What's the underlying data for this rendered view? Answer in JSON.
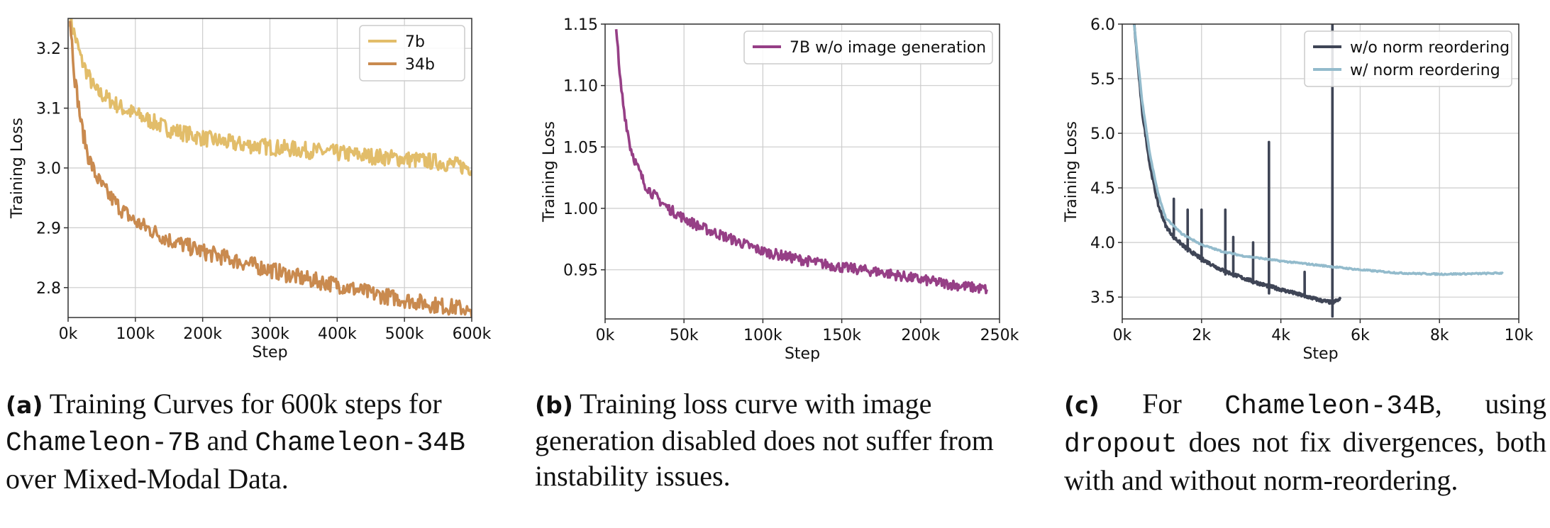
{
  "colors": {
    "c7b": "#e2bd6a",
    "c34b": "#c98a4f",
    "purple": "#963f86",
    "dark": "#3f4556",
    "lightblue": "#93bbcc",
    "grid": "#cccccc",
    "axis": "#333333"
  },
  "chart_data": [
    {
      "type": "line",
      "xlabel": "Step",
      "ylabel": "Training Loss",
      "xlim": [
        0,
        600000
      ],
      "ylim": [
        2.75,
        3.25
      ],
      "xticks": [
        0,
        100000,
        200000,
        300000,
        400000,
        500000,
        600000
      ],
      "xtick_labels": [
        "0k",
        "100k",
        "200k",
        "300k",
        "400k",
        "500k",
        "600k"
      ],
      "yticks": [
        2.8,
        2.9,
        3.0,
        3.1,
        3.2
      ],
      "ytick_labels": [
        "2.8",
        "2.9",
        "3.0",
        "3.1",
        "3.2"
      ],
      "grid": true,
      "legend_position": "top-right",
      "series": [
        {
          "name": "7b",
          "color_key": "c7b",
          "x": [
            3000,
            20000,
            40000,
            60000,
            80000,
            100000,
            150000,
            200000,
            250000,
            300000,
            350000,
            400000,
            450000,
            500000,
            550000,
            600000
          ],
          "y": [
            3.25,
            3.18,
            3.13,
            3.115,
            3.1,
            3.09,
            3.065,
            3.05,
            3.04,
            3.035,
            3.03,
            3.025,
            3.02,
            3.015,
            3.01,
            3.0
          ]
        },
        {
          "name": "34b",
          "color_key": "c34b",
          "x": [
            3000,
            10000,
            20000,
            30000,
            40000,
            50000,
            60000,
            80000,
            100000,
            150000,
            200000,
            250000,
            300000,
            350000,
            400000,
            450000,
            500000,
            550000,
            590000,
            600000
          ],
          "y": [
            3.25,
            3.15,
            3.07,
            3.02,
            2.99,
            2.97,
            2.955,
            2.93,
            2.91,
            2.88,
            2.86,
            2.845,
            2.83,
            2.815,
            2.805,
            2.79,
            2.78,
            2.77,
            2.765,
            2.75
          ]
        }
      ]
    },
    {
      "type": "line",
      "xlabel": "Step",
      "ylabel": "Training Loss",
      "xlim": [
        0,
        250000
      ],
      "ylim": [
        0.91,
        1.15
      ],
      "xticks": [
        0,
        50000,
        100000,
        150000,
        200000,
        250000
      ],
      "xtick_labels": [
        "0k",
        "50k",
        "100k",
        "150k",
        "200k",
        "250k"
      ],
      "yticks": [
        0.95,
        1.0,
        1.05,
        1.1,
        1.15
      ],
      "ytick_labels": [
        "0.95",
        "1.00",
        "1.05",
        "1.10",
        "1.15"
      ],
      "grid": true,
      "legend_position": "top-right",
      "series": [
        {
          "name": "7B w/o image generation",
          "color_key": "purple",
          "x": [
            7000,
            9000,
            12000,
            16000,
            20000,
            25000,
            30000,
            40000,
            50000,
            60000,
            80000,
            100000,
            125000,
            150000,
            175000,
            200000,
            220000,
            242000
          ],
          "y": [
            1.15,
            1.11,
            1.08,
            1.05,
            1.035,
            1.02,
            1.012,
            1.0,
            0.992,
            0.985,
            0.975,
            0.965,
            0.958,
            0.952,
            0.948,
            0.942,
            0.938,
            0.934
          ]
        }
      ]
    },
    {
      "type": "line",
      "xlabel": "Step",
      "ylabel": "Training Loss",
      "xlim": [
        0,
        10000
      ],
      "ylim": [
        3.3,
        6.0
      ],
      "xticks": [
        0,
        2000,
        4000,
        6000,
        8000,
        10000
      ],
      "xtick_labels": [
        "0k",
        "2k",
        "4k",
        "6k",
        "8k",
        "10k"
      ],
      "yticks": [
        3.5,
        4.0,
        4.5,
        5.0,
        5.5,
        6.0
      ],
      "ytick_labels": [
        "3.5",
        "4.0",
        "4.5",
        "5.0",
        "5.5",
        "6.0"
      ],
      "grid": true,
      "legend_position": "top-right",
      "series": [
        {
          "name": "w/o norm reordering",
          "color_key": "dark",
          "x": [
            300,
            500,
            700,
            900,
            1100,
            1300,
            1600,
            2000,
            2500,
            3000,
            3500,
            4000,
            4500,
            5000,
            5300,
            5500
          ],
          "y": [
            6.0,
            5.2,
            4.7,
            4.35,
            4.15,
            4.05,
            3.95,
            3.85,
            3.75,
            3.68,
            3.62,
            3.57,
            3.52,
            3.47,
            3.45,
            3.48
          ]
        },
        {
          "name": "w/ norm reordering",
          "color_key": "lightblue",
          "x": [
            300,
            500,
            700,
            900,
            1100,
            1500,
            2000,
            2500,
            3000,
            4000,
            5000,
            6000,
            7000,
            8000,
            9000,
            9600
          ],
          "y": [
            6.0,
            5.3,
            4.8,
            4.45,
            4.22,
            4.08,
            3.98,
            3.92,
            3.88,
            3.83,
            3.79,
            3.75,
            3.72,
            3.71,
            3.715,
            3.72
          ]
        }
      ],
      "spikes": [
        {
          "series": 0,
          "x": 1300,
          "y": 4.4
        },
        {
          "series": 0,
          "x": 1650,
          "y": 4.3
        },
        {
          "series": 0,
          "x": 2000,
          "y": 4.3
        },
        {
          "series": 0,
          "x": 2600,
          "y": 4.3
        },
        {
          "series": 0,
          "x": 2800,
          "y": 4.05
        },
        {
          "series": 0,
          "x": 3300,
          "y": 4.0
        },
        {
          "series": 0,
          "x": 3700,
          "y": 4.92
        },
        {
          "series": 0,
          "x": 4600,
          "y": 3.73
        },
        {
          "series": 0,
          "x": 5300,
          "y": 6.0
        }
      ]
    }
  ],
  "captions": [
    {
      "label": "(a)",
      "parts": [
        " Training Curves for 600k steps for ",
        "Chameleon-7B",
        " and ",
        "Chameleon-34B",
        " over Mixed-Modal Data."
      ]
    },
    {
      "label": "(b)",
      "parts": [
        " Training loss curve with image generation disabled does not suffer from instability issues."
      ]
    },
    {
      "label": "(c)",
      "parts": [
        " For ",
        "Chameleon-34B",
        ", using ",
        "dropout",
        " does not fix divergences, both with and without norm-reordering."
      ]
    }
  ]
}
